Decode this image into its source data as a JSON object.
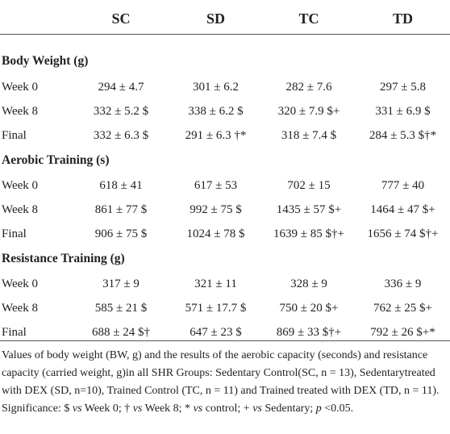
{
  "columns": [
    "SC",
    "SD",
    "TC",
    "TD"
  ],
  "sections": [
    {
      "title": "Body Weight (g)",
      "rows": [
        {
          "label": "Week 0",
          "values": [
            "294 ± 4.7",
            "301 ± 6.2",
            "282 ± 7.6",
            "297 ± 5.8"
          ]
        },
        {
          "label": "Week 8",
          "values": [
            "332 ± 5.2 $",
            "338 ± 6.2 $",
            "320 ± 7.9 $+",
            "331 ± 6.9 $"
          ]
        },
        {
          "label": "Final",
          "values": [
            "332 ± 6.3 $",
            "291 ± 6.3 †*",
            "318 ± 7.4 $",
            "284 ± 5.3 $†*"
          ]
        }
      ]
    },
    {
      "title": "Aerobic Training (s)",
      "rows": [
        {
          "label": "Week 0",
          "values": [
            "618 ± 41",
            "617 ± 53",
            "702 ± 15",
            "777 ± 40"
          ]
        },
        {
          "label": "Week 8",
          "values": [
            "861 ± 77 $",
            "992 ± 75 $",
            "1435 ± 57 $+",
            "1464 ± 47 $+"
          ]
        },
        {
          "label": "Final",
          "values": [
            "906 ± 75 $",
            "1024 ± 78 $",
            "1639 ± 85 $†+",
            "1656 ± 74 $†+"
          ]
        }
      ]
    },
    {
      "title": "Resistance Training (g)",
      "rows": [
        {
          "label": "Week 0",
          "values": [
            "317 ± 9",
            "321 ± 11",
            "328 ± 9",
            "336 ± 9"
          ]
        },
        {
          "label": "Week 8",
          "values": [
            "585 ± 21 $",
            "571 ± 17.7 $",
            "750 ± 20 $+",
            "762 ± 25 $+"
          ]
        },
        {
          "label": "Final",
          "values": [
            "688 ± 24 $†",
            "647 ± 23 $",
            "869 ± 33 $†+",
            "792 ± 26 $+*"
          ]
        }
      ]
    }
  ],
  "caption": {
    "part1": "Values of body weight (BW, g) and the results of the aerobic capacity (seconds) and resistance capacity (carried weight, g)in all SHR Groups: Sedentary Control(SC, n = 13), Sedentarytreated with DEX (SD, n=10), Trained Control (TC, n = 11) and Trained treated with DEX (TD, n = 11). Significance: $ ",
    "vs1": "vs",
    "part2": " Week 0; † ",
    "vs2": "vs",
    "part3": " Week 8; * ",
    "vs3": "vs",
    "part4": " control; + ",
    "vs4": "vs",
    "part5": " Sedentary; ",
    "p": "p",
    "part6": " <0.05."
  }
}
